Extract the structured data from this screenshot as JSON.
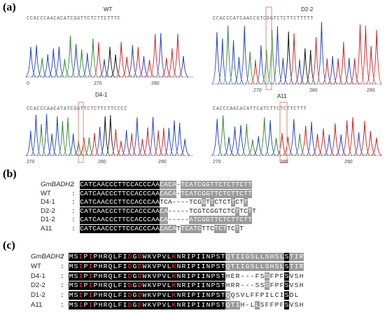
{
  "panels": {
    "a": "(a)",
    "b": "(b)",
    "c": "(c)"
  },
  "chromatograms": [
    {
      "label": "WT",
      "seq": "CCACCCAACACATCGGTTCTCTTCTTTC",
      "ticks": [
        "0",
        "270",
        "280"
      ],
      "box": false
    },
    {
      "label": "D2-2",
      "seq": "CCACCCATCAACCGTCGGTCTCTTCTTTTT",
      "ticks": [
        "270",
        "280",
        "290"
      ],
      "box": true
    },
    {
      "label": "D4-1",
      "seq": "CCACCCAACATATCGGTTCTCTTCTTCCCC",
      "ticks": [
        "270",
        "280",
        "290"
      ],
      "box": true
    },
    {
      "label": "A11",
      "seq": "CACCCAACACATTCATCTTCTCTTCTTT",
      "ticks": [
        "270",
        "280",
        "290"
      ],
      "box": true
    }
  ],
  "dna_alignment": {
    "rows": [
      {
        "name": "GmBADH2",
        "seq": "CATCAACCCTTCCACCCAACACA-TCATCGGTTCTCTTCTT"
      },
      {
        "name": "WT",
        "seq": "CATCAACCCTTCCACCCAACACA-TCATCGGTTCTCTTCTT"
      },
      {
        "name": "D4-1",
        "seq": "CATCAACCCTTCCACCCAATCA----TCGGTTCTCTTCTT"
      },
      {
        "name": "D2-2",
        "seq": "CATCAACCCTTCCACCCAACA-----TCGTCGGTCTCTTCTT"
      },
      {
        "name": "D1-2",
        "seq": "CATCAACCCTTCCACCCAACA-----ATCGGTTCTCTTCTT"
      },
      {
        "name": "A11",
        "seq": "CATCAACCCTTCCACCCAACACATTCATCTTCTCTTCTT"
      }
    ]
  },
  "protein_alignment": {
    "rows": [
      {
        "name": "GmBADH2",
        "seq": "MSIPIPHRQLFIDGDWKVPVLKNRIPIINPSTQTIIGSLLSHSLSTIR"
      },
      {
        "name": "WT",
        "seq": "MSIPIPHRQLFIDGDWKVPVLKNRIPIINPSTQTIIGSLLSHSLSTIR"
      },
      {
        "name": "D4-1",
        "seq": "MSIPIPHRQLFIDGDWKVPVLKNRIPIINPSTHER---FSSFPFSVSH"
      },
      {
        "name": "D2-2",
        "seq": "MSIPIPHRQLFIDGDWKVPVLKNRIPIINPSTHRR---SSSFPFSVSH"
      },
      {
        "name": "D1-2",
        "seq": "MSIPIPHRQLFIDGDWKVPVLKNRIPIINPSTQQSVLFFPILCISDL"
      },
      {
        "name": "A11",
        "seq": "MSIPIPHRQLFIDGDWKVPVLKNRIPIINPSTQTIH-LLSFFPFSVSH"
      }
    ]
  },
  "colors": {
    "A": "#2e8b2e",
    "C": "#1f3fd0",
    "G": "#111111",
    "T": "#d02020",
    "highlight": "#000000",
    "partial": "#9a9a9a",
    "box": "#e08a7a"
  }
}
